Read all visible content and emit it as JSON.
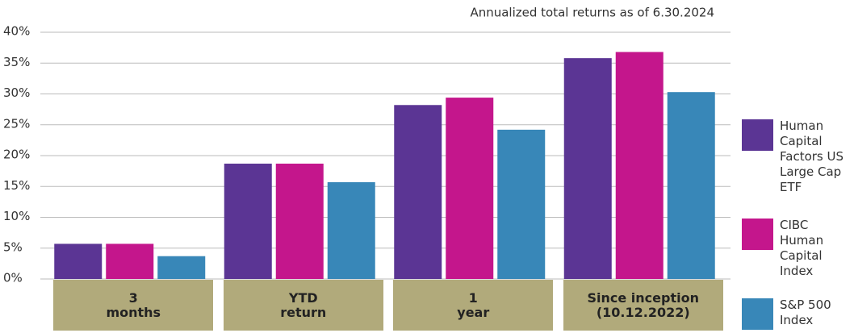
{
  "chart_data": {
    "type": "bar",
    "title": "Annualized total returns as of 6.30.2024",
    "categories": [
      "3\nmonths",
      "YTD\nreturn",
      "1\nyear",
      "Since inception\n(10.12.2022)"
    ],
    "series": [
      {
        "name": "Human Capital Factors US Large Cap ETF",
        "color": "#5b3594",
        "values": [
          5.7,
          18.7,
          28.2,
          35.8
        ]
      },
      {
        "name": "CIBC Human Capital Index",
        "color": "#c4168c",
        "values": [
          5.7,
          18.7,
          29.4,
          36.8
        ]
      },
      {
        "name": "S&P 500 Index",
        "color": "#3887b8",
        "values": [
          3.7,
          15.7,
          24.2,
          30.3
        ]
      }
    ],
    "ylim": [
      0,
      40
    ],
    "yticks": [
      {
        "value": 0,
        "label": "0%"
      },
      {
        "value": 5,
        "label": "5%"
      },
      {
        "value": 10,
        "label": "10%"
      },
      {
        "value": 15,
        "label": "15%"
      },
      {
        "value": 20,
        "label": "20%"
      },
      {
        "value": 25,
        "label": "25%"
      },
      {
        "value": 30,
        "label": "30%"
      },
      {
        "value": 35,
        "label": "35%"
      },
      {
        "value": 40,
        "label": "40%"
      }
    ],
    "grid": true,
    "legend": "right",
    "category_box_color": "#b1aa7b"
  }
}
